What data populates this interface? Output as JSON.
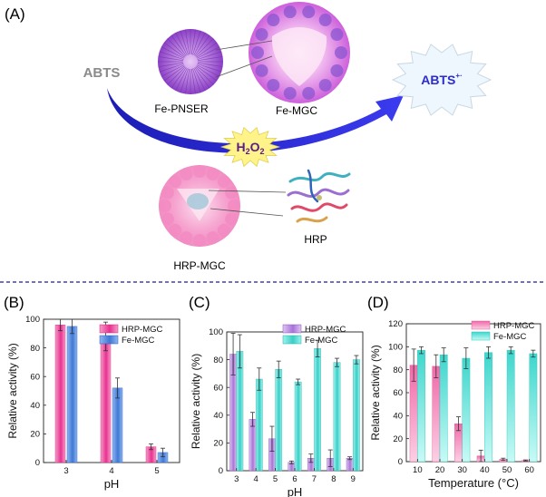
{
  "figure": {
    "panel_labels": [
      "(A)",
      "(B)",
      "(C)",
      "(D)"
    ]
  },
  "scheme": {
    "abts": "ABTS",
    "abts_radical": "ABTS",
    "abts_radical_sup": "+·",
    "fe_pnser": "Fe-PNSER",
    "fe_mgc": "Fe-MGC",
    "h2o2_main": "H",
    "h2o2_sub1": "2",
    "h2o2_o": "O",
    "h2o2_sub2": "2",
    "hrp_mgc": "HRP-MGC",
    "hrp": "HRP"
  },
  "colors": {
    "hrp_mgc": "#e8308f",
    "fe_mgc": "#37cfc7",
    "purple": "#b07ad6",
    "blue": "#3f78d6",
    "arrow": "#2b2bd0",
    "h2o2_burst": "#fff38a",
    "abts_gray": "#8a8a8a"
  },
  "chart_data": [
    {
      "type": "bar",
      "panel": "B",
      "xlabel": "pH",
      "ylabel": "Relative activity (%)",
      "ylim": [
        0,
        100
      ],
      "yticks": [
        0,
        20,
        40,
        60,
        80,
        100
      ],
      "categories": [
        "3",
        "4",
        "5"
      ],
      "legend_position": "top-right",
      "series": [
        {
          "name": "HRP-MGC",
          "values": [
            96,
            88,
            11
          ],
          "errors": [
            4,
            10,
            2
          ]
        },
        {
          "name": "Fe-MGC",
          "values": [
            95,
            52,
            7
          ],
          "errors": [
            5,
            7,
            3
          ]
        }
      ]
    },
    {
      "type": "bar",
      "panel": "C",
      "xlabel": "pH",
      "ylabel": "Relative activity (%)",
      "ylim": [
        0,
        100
      ],
      "yticks": [
        0,
        20,
        40,
        60,
        80,
        100
      ],
      "categories": [
        "3",
        "4",
        "5",
        "6",
        "7",
        "8",
        "9"
      ],
      "legend_position": "top-right",
      "series": [
        {
          "name": "HRP-MGC",
          "values": [
            84,
            37,
            23,
            6,
            9,
            9,
            9
          ],
          "errors": [
            15,
            5,
            9,
            1,
            3,
            6,
            1
          ]
        },
        {
          "name": "Fe-MGC",
          "values": [
            86,
            66,
            73,
            64,
            88,
            78,
            80
          ],
          "errors": [
            12,
            8,
            6,
            2,
            6,
            3,
            3
          ]
        }
      ]
    },
    {
      "type": "bar",
      "panel": "D",
      "xlabel": "Temperature (°C)",
      "ylabel": "Relative activity (%)",
      "ylim": [
        0,
        120
      ],
      "yticks": [
        0,
        20,
        40,
        60,
        80,
        100,
        120
      ],
      "categories": [
        "10",
        "20",
        "30",
        "40",
        "50",
        "60"
      ],
      "legend_position": "top-right",
      "series": [
        {
          "name": "HRP-MGC",
          "values": [
            84,
            83,
            33,
            5,
            2,
            1
          ],
          "errors": [
            14,
            10,
            6,
            5,
            1,
            0.5
          ]
        },
        {
          "name": "Fe-MGC",
          "values": [
            97,
            93,
            90,
            95,
            97,
            94
          ],
          "errors": [
            3,
            6,
            9,
            5,
            3,
            3
          ]
        }
      ]
    }
  ]
}
